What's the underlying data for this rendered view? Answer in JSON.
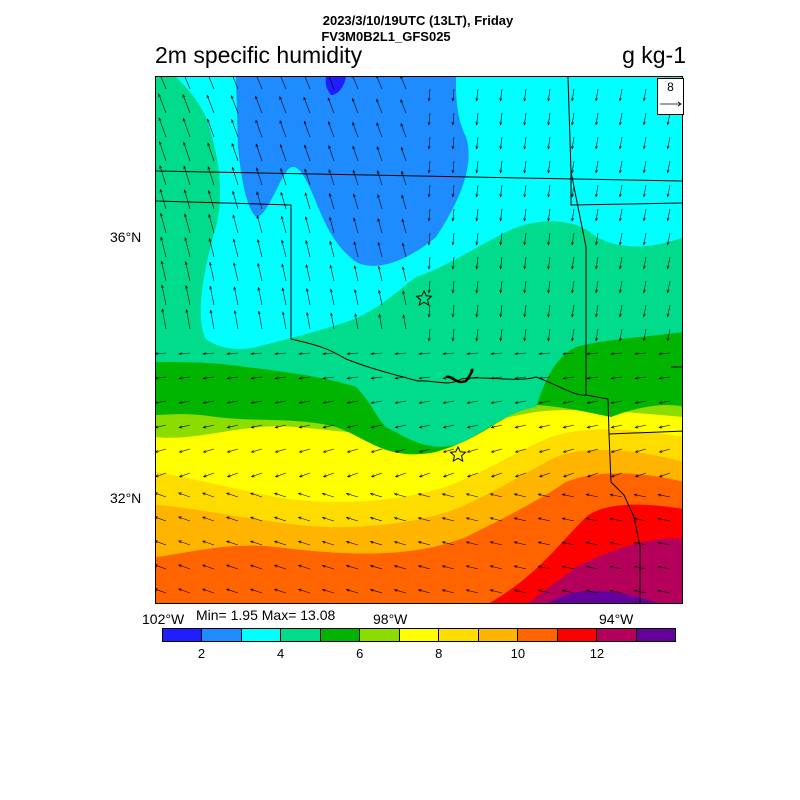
{
  "header": {
    "title_line1": "2023/3/10/19UTC (13LT), Friday",
    "title_line2": "FV3M0B2L1_GFS025",
    "variable": "2m specific humidity",
    "units": "g kg-1"
  },
  "axes": {
    "lat_labels": [
      "36°N",
      "32°N"
    ],
    "lon_labels": [
      "102°W",
      "98°W",
      "94°W"
    ]
  },
  "stats": {
    "text": "Min= 1.95 Max= 13.08"
  },
  "reference_vector": {
    "label": "8"
  },
  "colorbar": {
    "colors": [
      "#1e1eff",
      "#1e8cff",
      "#00ffff",
      "#00dc8c",
      "#00b400",
      "#8cdc00",
      "#ffff00",
      "#ffdc00",
      "#ffb400",
      "#ff6400",
      "#ff0000",
      "#b4005a",
      "#64009c"
    ],
    "labels": [
      "2",
      "4",
      "6",
      "8",
      "10",
      "12"
    ]
  },
  "chart_data": {
    "type": "heatmap",
    "title": "2m specific humidity",
    "units": "g kg-1",
    "lat_ticks": [
      36,
      32
    ],
    "lon_ticks": [
      -102,
      -98,
      -94
    ],
    "min": 1.95,
    "max": 13.08,
    "levels": [
      1,
      2,
      3,
      4,
      5,
      6,
      7,
      8,
      9,
      10,
      11,
      12,
      13,
      14
    ]
  }
}
